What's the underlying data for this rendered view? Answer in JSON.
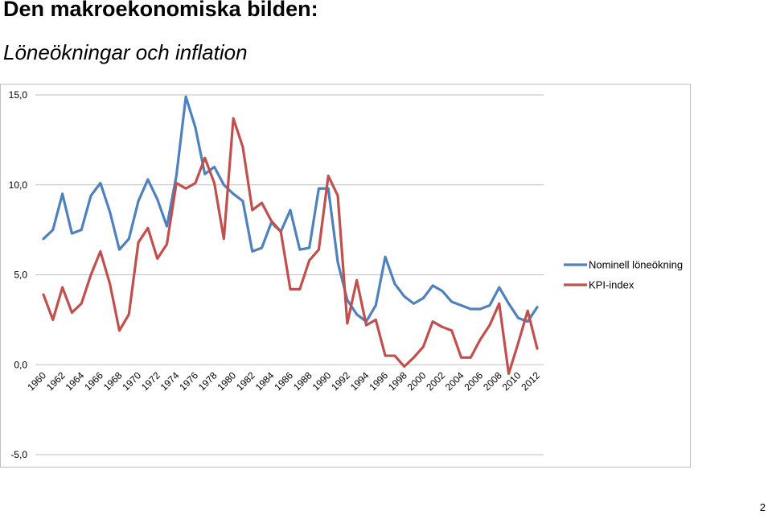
{
  "slide": {
    "title": "Den makroekonomiska bilden:",
    "subtitle": "Löneökningar och inflation",
    "page_number": "2"
  },
  "chart_data": {
    "type": "line",
    "title": "",
    "xlabel": "",
    "ylabel": "",
    "ylim": [
      -5,
      15
    ],
    "yticks": [
      {
        "value": -5,
        "label": "-5,0"
      },
      {
        "value": 0,
        "label": "0,0"
      },
      {
        "value": 5,
        "label": "5,0"
      },
      {
        "value": 10,
        "label": "10,0"
      },
      {
        "value": 15,
        "label": "15,0"
      }
    ],
    "grid": "horizontal",
    "legend_position": "right",
    "x": [
      1960,
      1961,
      1962,
      1963,
      1964,
      1965,
      1966,
      1967,
      1968,
      1969,
      1970,
      1971,
      1972,
      1973,
      1974,
      1975,
      1976,
      1977,
      1978,
      1979,
      1980,
      1981,
      1982,
      1983,
      1984,
      1985,
      1986,
      1987,
      1988,
      1989,
      1990,
      1991,
      1992,
      1993,
      1994,
      1995,
      1996,
      1997,
      1998,
      1999,
      2000,
      2001,
      2002,
      2003,
      2004,
      2005,
      2006,
      2007,
      2008,
      2009,
      2010,
      2011,
      2012
    ],
    "x_tick_labels": [
      "1960",
      "1962",
      "1964",
      "1966",
      "1968",
      "1970",
      "1972",
      "1974",
      "1976",
      "1978",
      "1980",
      "1982",
      "1984",
      "1986",
      "1988",
      "1990",
      "1992",
      "1994",
      "1996",
      "1998",
      "2000",
      "2002",
      "2004",
      "2006",
      "2008",
      "2010",
      "2012"
    ],
    "series": [
      {
        "name": "Nominell löneökning",
        "color": "#4F81BD",
        "values": [
          7.0,
          7.5,
          9.5,
          7.3,
          7.5,
          9.4,
          10.1,
          8.5,
          6.4,
          7.0,
          9.1,
          10.3,
          9.2,
          7.7,
          10.5,
          14.9,
          13.2,
          10.6,
          11.0,
          10.0,
          9.5,
          9.1,
          6.3,
          6.5,
          7.9,
          7.4,
          8.6,
          6.4,
          6.5,
          9.8,
          9.8,
          5.7,
          3.6,
          2.8,
          2.4,
          3.3,
          6.0,
          4.5,
          3.8,
          3.4,
          3.7,
          4.4,
          4.1,
          3.5,
          3.3,
          3.1,
          3.1,
          3.3,
          4.3,
          3.4,
          2.6,
          2.4,
          3.2
        ]
      },
      {
        "name": "KPI-index",
        "color": "#C0504D",
        "values": [
          3.9,
          2.5,
          4.3,
          2.9,
          3.4,
          5.0,
          6.3,
          4.5,
          1.9,
          2.8,
          6.8,
          7.6,
          5.9,
          6.7,
          10.1,
          9.8,
          10.1,
          11.5,
          10.1,
          7.0,
          13.7,
          12.1,
          8.6,
          9.0,
          8.0,
          7.4,
          4.2,
          4.2,
          5.8,
          6.4,
          10.5,
          9.4,
          2.3,
          4.7,
          2.2,
          2.5,
          0.5,
          0.5,
          -0.1,
          0.4,
          1.0,
          2.4,
          2.1,
          1.9,
          0.4,
          0.4,
          1.4,
          2.2,
          3.4,
          -0.5,
          1.2,
          3.0,
          0.9
        ]
      }
    ]
  }
}
